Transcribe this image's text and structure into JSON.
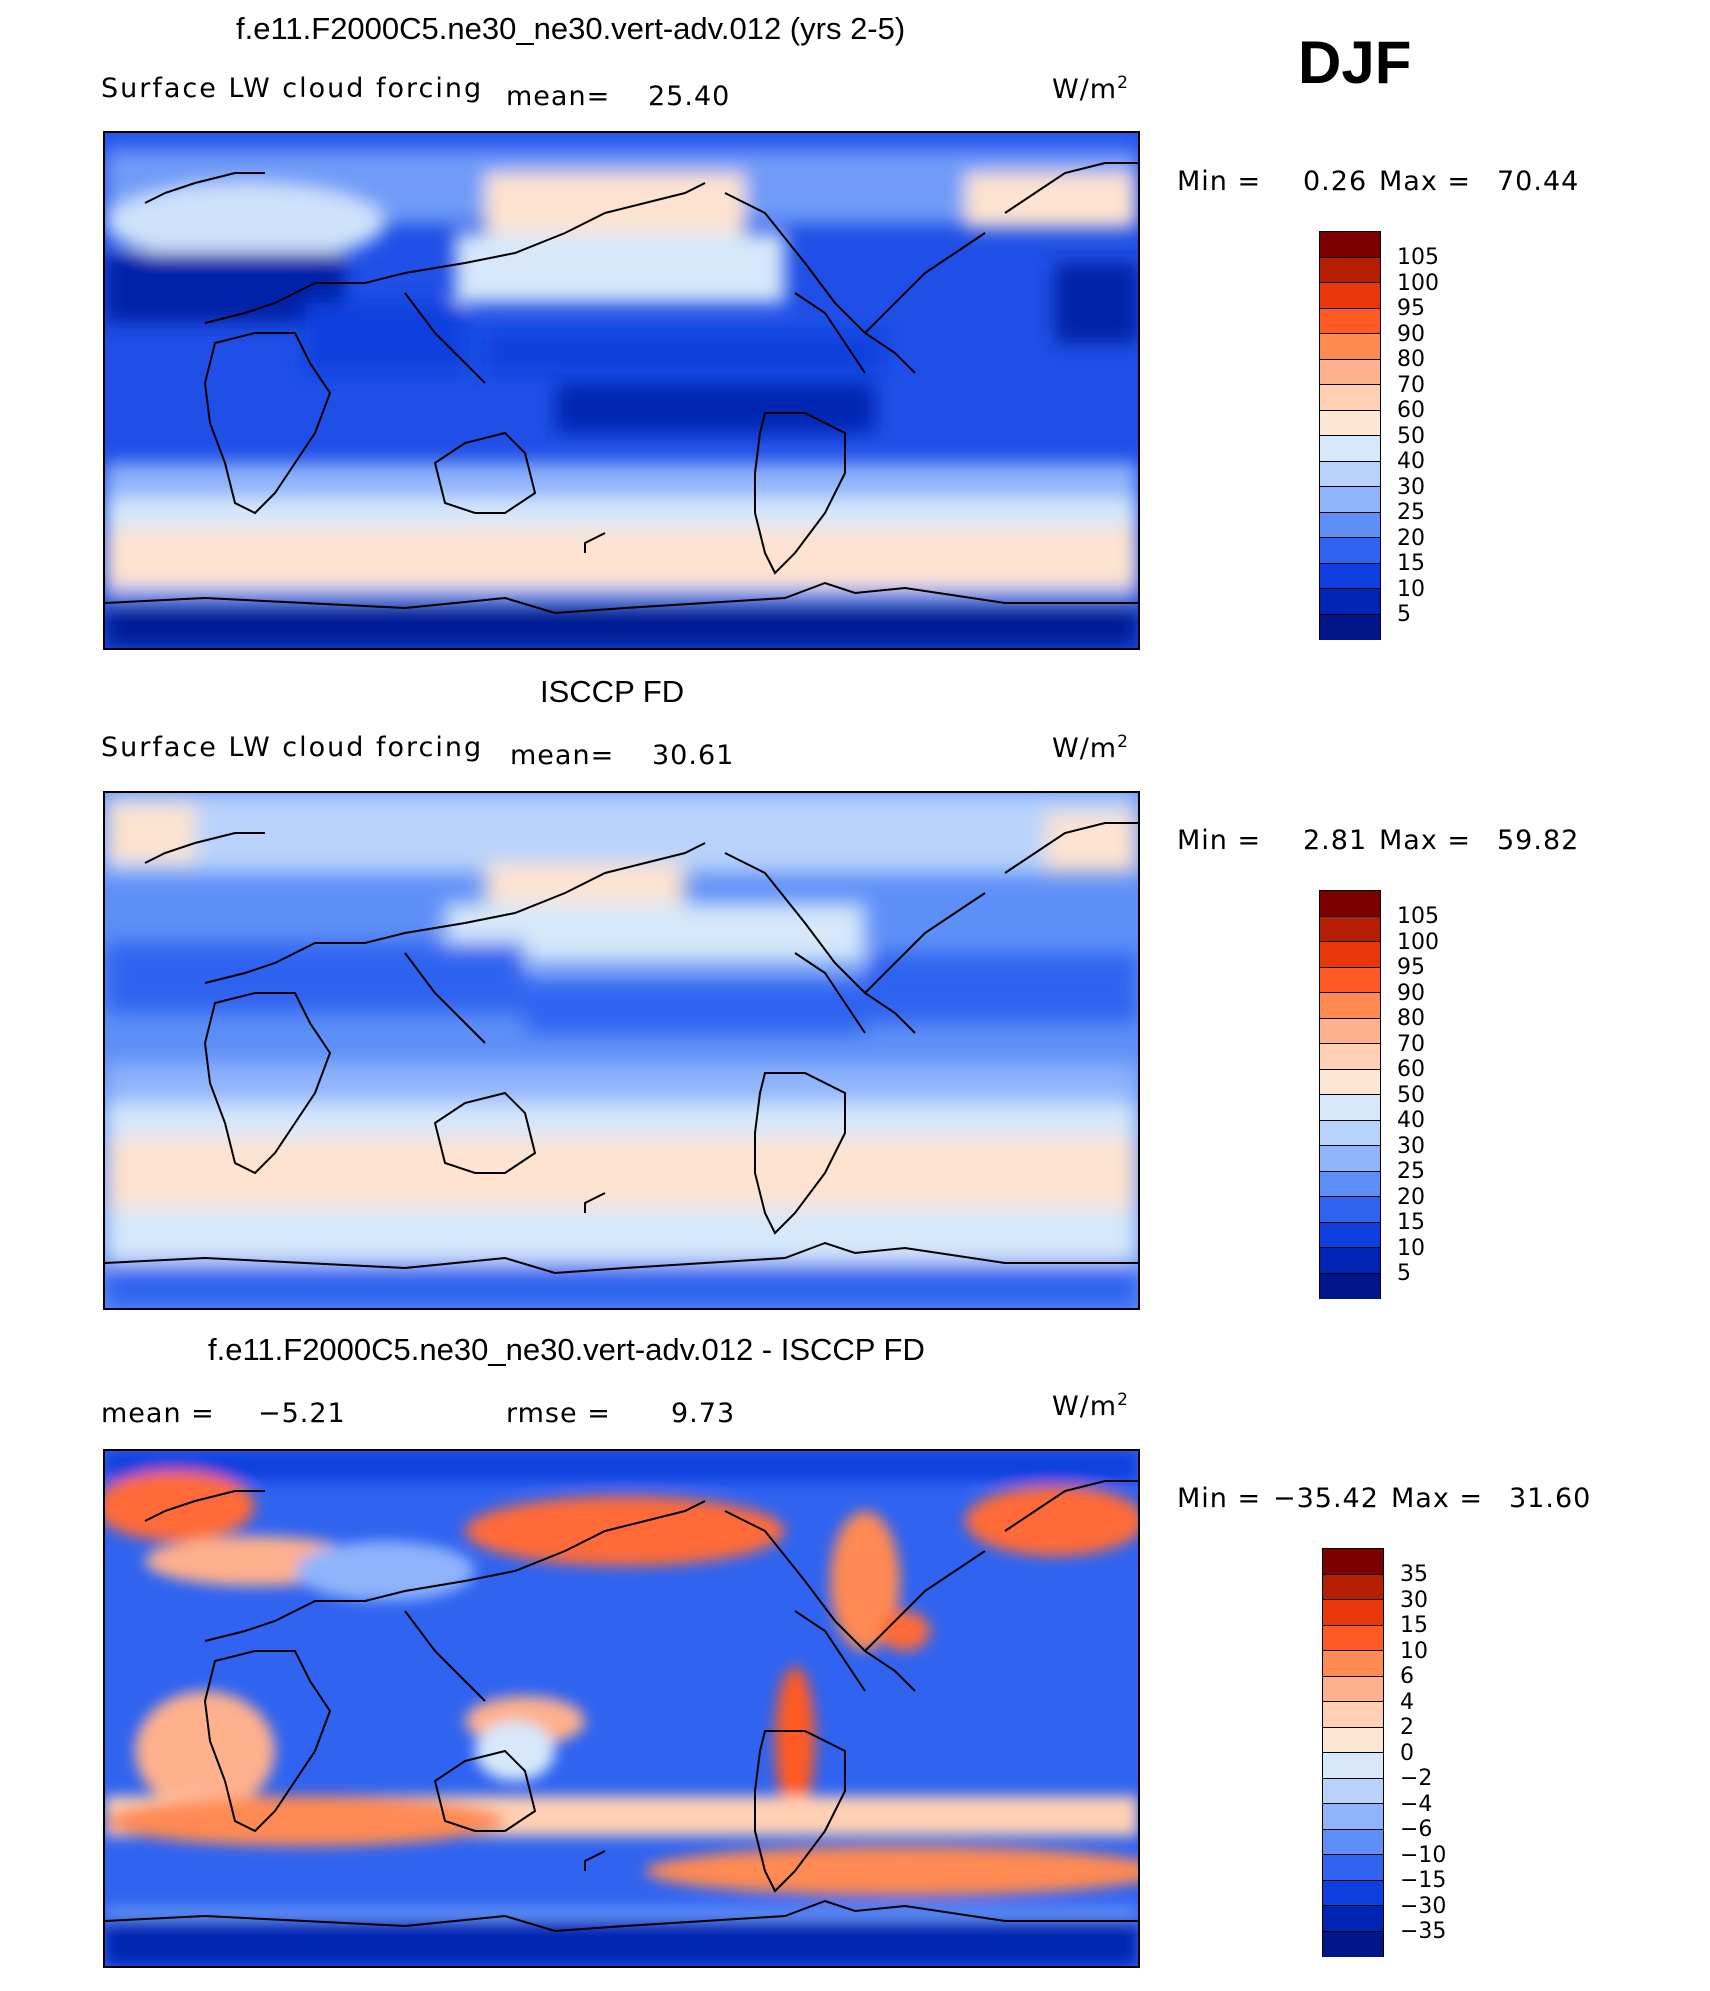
{
  "season": "DJF",
  "panels": [
    {
      "id": "model",
      "title": "f.e11.F2000C5.ne30_ne30.vert-adv.012 (yrs 2-5)",
      "field": "Surface LW cloud forcing",
      "mean_label": "mean=",
      "mean_value": "25.40",
      "units_base": "W/m",
      "units_exp": "2",
      "min_label": "Min =",
      "min_value": "0.26",
      "max_label": "Max =",
      "max_value": "70.44",
      "scale_labels": [
        "105",
        "100",
        "95",
        "90",
        "80",
        "70",
        "60",
        "50",
        "40",
        "30",
        "25",
        "20",
        "15",
        "10",
        "5"
      ]
    },
    {
      "id": "obs",
      "title": "ISCCP FD",
      "field": "Surface LW cloud forcing",
      "mean_label": "mean=",
      "mean_value": "30.61",
      "units_base": "W/m",
      "units_exp": "2",
      "min_label": "Min =",
      "min_value": "2.81",
      "max_label": "Max =",
      "max_value": "59.82",
      "scale_labels": [
        "105",
        "100",
        "95",
        "90",
        "80",
        "70",
        "60",
        "50",
        "40",
        "30",
        "25",
        "20",
        "15",
        "10",
        "5"
      ]
    },
    {
      "id": "diff",
      "title": "f.e11.F2000C5.ne30_ne30.vert-adv.012 - ISCCP FD",
      "mean_label": "mean =",
      "mean_value": "−5.21",
      "rmse_label": "rmse =",
      "rmse_value": "9.73",
      "units_base": "W/m",
      "units_exp": "2",
      "min_label": "Min =",
      "min_value": "−35.42",
      "max_label": "Max =",
      "max_value": "31.60",
      "scale_labels": [
        "35",
        "30",
        "15",
        "10",
        "6",
        "4",
        "2",
        "0",
        "−2",
        "−4",
        "−6",
        "−10",
        "−15",
        "−30",
        "−35"
      ]
    }
  ],
  "colors": {
    "scale_16": [
      "#7d0000",
      "#b51e00",
      "#e8380a",
      "#ff5a24",
      "#ff8a52",
      "#ffb08c",
      "#ffd0b4",
      "#fde6d4",
      "#d6e8fa",
      "#b8d3fb",
      "#8fb4fb",
      "#5e8ff7",
      "#2f63f0",
      "#0f3fde",
      "#0025b4",
      "#00168a"
    ]
  }
}
